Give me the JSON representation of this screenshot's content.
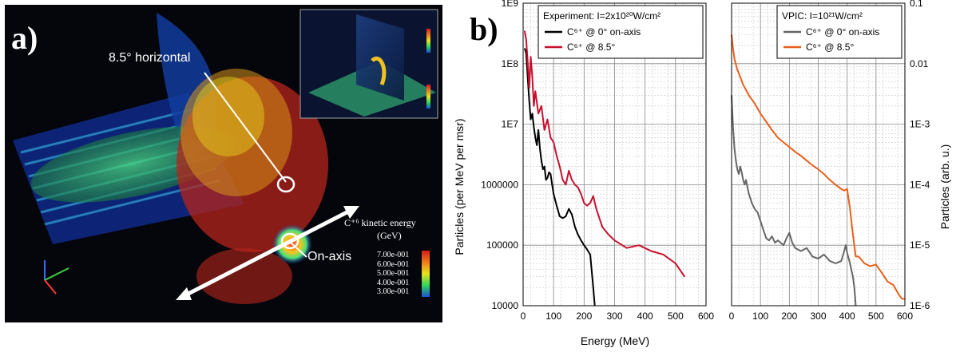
{
  "panel_a": {
    "label": "a)",
    "annotation_horizontal": "8.5° horizontal",
    "annotation_onaxis": "On-axis",
    "colorbar_title_line1": "C⁺⁶ kinetic energy",
    "colorbar_title_line2": "(GeV)",
    "colorbar_ticks": [
      "7.00e-001",
      "6.00e-001",
      "5.00e-001",
      "4.00e-001",
      "3.00e-001"
    ],
    "colorbar_colors": [
      "#d81b1b",
      "#f07a1a",
      "#e8e21a",
      "#2fd65a",
      "#1a4fd8"
    ]
  },
  "panel_b": {
    "label": "b)",
    "xlabel": "Energy (MeV)",
    "ylabel_left": "Particles (per MeV per msr)",
    "ylabel_right": "Particles (arb. u.)"
  },
  "chart_data": [
    {
      "type": "line",
      "title": "",
      "legend_title": "Experiment: I=2x10²⁰W/cm²",
      "legend_position": "top-right",
      "xlabel": "",
      "ylabel": "Particles (per MeV per msr)",
      "xlim": [
        0,
        600
      ],
      "ylim": [
        10000,
        1000000000
      ],
      "yscale": "log",
      "grid": true,
      "x_ticks": [
        "0",
        "100",
        "200",
        "300",
        "400",
        "500",
        "600"
      ],
      "y_ticks": [
        "10000",
        "100000",
        "1000000",
        "1E7",
        "1E8",
        "1E9"
      ],
      "series": [
        {
          "name": "C⁶⁺ @ 0° on-axis",
          "color": "#000000",
          "x": [
            5,
            10,
            15,
            20,
            25,
            30,
            35,
            40,
            45,
            50,
            55,
            60,
            65,
            70,
            75,
            80,
            85,
            90,
            95,
            100,
            110,
            120,
            130,
            140,
            150,
            160,
            170,
            180,
            190,
            200,
            210,
            220,
            230,
            235
          ],
          "y": [
            180000000,
            150000000,
            60000000,
            25000000,
            12000000,
            15000000,
            9000000,
            6000000,
            4500000,
            8000000,
            4000000,
            2500000,
            1800000,
            2000000,
            1200000,
            1300000,
            1600000,
            1500000,
            1000000,
            700000,
            450000,
            300000,
            280000,
            300000,
            400000,
            320000,
            200000,
            150000,
            120000,
            100000,
            85000,
            70000,
            20000,
            10000
          ]
        },
        {
          "name": "C⁶⁺ @ 8.5°",
          "color": "#c8102e",
          "x": [
            5,
            10,
            15,
            20,
            25,
            30,
            35,
            40,
            50,
            60,
            70,
            80,
            90,
            100,
            110,
            120,
            130,
            140,
            150,
            160,
            170,
            180,
            190,
            200,
            210,
            220,
            230,
            240,
            260,
            280,
            300,
            340,
            380,
            420,
            460,
            500,
            530
          ],
          "y": [
            350000000,
            250000000,
            110000000,
            40000000,
            130000000,
            60000000,
            20000000,
            35000000,
            15000000,
            20000000,
            8000000,
            12000000,
            6000000,
            5000000,
            3000000,
            2000000,
            1200000,
            1000000,
            1700000,
            1200000,
            1000000,
            900000,
            700000,
            500000,
            450000,
            500000,
            650000,
            400000,
            200000,
            150000,
            120000,
            90000,
            100000,
            80000,
            70000,
            50000,
            30000
          ]
        }
      ]
    },
    {
      "type": "line",
      "title": "",
      "legend_title": "VPIC: I=10²¹W/cm²",
      "legend_position": "top-right",
      "xlabel": "",
      "ylabel": "Particles (arb. u.)",
      "xlim": [
        0,
        600
      ],
      "ylim": [
        1e-06,
        0.1
      ],
      "yscale": "log",
      "grid": true,
      "x_ticks": [
        "0",
        "100",
        "200",
        "300",
        "400",
        "500",
        "600"
      ],
      "y_ticks": [
        "1E-6",
        "1E-5",
        "1E-4",
        "1E-3",
        "0.01",
        "0.1"
      ],
      "series": [
        {
          "name": "C⁶⁺ @ 0° on-axis",
          "color": "#666666",
          "x": [
            0,
            5,
            10,
            15,
            20,
            25,
            30,
            35,
            40,
            45,
            50,
            55,
            60,
            70,
            80,
            90,
            100,
            110,
            120,
            130,
            140,
            150,
            160,
            170,
            180,
            190,
            200,
            210,
            220,
            240,
            260,
            280,
            300,
            320,
            340,
            360,
            380,
            390,
            395,
            400,
            410,
            420,
            425,
            430
          ],
          "y": [
            0.003,
            0.0009,
            0.0004,
            0.00025,
            0.00018,
            0.00015,
            0.0002,
            0.00016,
            0.00012,
            0.0001,
            0.00012,
            9e-05,
            7e-05,
            5e-05,
            4e-05,
            3.5e-05,
            2.5e-05,
            1.8e-05,
            1.3e-05,
            1.2e-05,
            1.4e-05,
            1.1e-05,
            1.2e-05,
            1.1e-05,
            1e-05,
            1.3e-05,
            1.6e-05,
            1.1e-05,
            9e-06,
            8e-06,
            9e-06,
            6.5e-06,
            6e-06,
            7e-06,
            5.5e-06,
            5e-06,
            5.5e-06,
            8e-06,
            1e-05,
            7.5e-06,
            5e-06,
            3e-06,
            2e-06,
            1e-06
          ]
        },
        {
          "name": "C⁶⁺ @ 8.5°",
          "color": "#e8601c",
          "x": [
            0,
            5,
            10,
            20,
            30,
            40,
            60,
            80,
            100,
            120,
            140,
            160,
            180,
            200,
            220,
            240,
            260,
            280,
            300,
            320,
            340,
            360,
            380,
            390,
            400,
            410,
            420,
            430,
            440,
            460,
            480,
            500,
            520,
            540,
            560,
            580,
            590,
            600
          ],
          "y": [
            0.03,
            0.018,
            0.012,
            0.008,
            0.006,
            0.0045,
            0.003,
            0.0022,
            0.0015,
            0.0011,
            0.0008,
            0.0006,
            0.0005,
            0.00042,
            0.00035,
            0.0003,
            0.00025,
            0.00021,
            0.00018,
            0.00015,
            0.00012,
            0.0001,
            8.5e-05,
            8e-05,
            8.5e-05,
            4e-05,
            1.5e-05,
            6.5e-06,
            6.5e-06,
            5e-06,
            4.5e-06,
            4.8e-06,
            3.5e-06,
            2.5e-06,
            2.2e-06,
            1.5e-06,
            1.3e-06,
            1.3e-06
          ]
        }
      ]
    }
  ]
}
